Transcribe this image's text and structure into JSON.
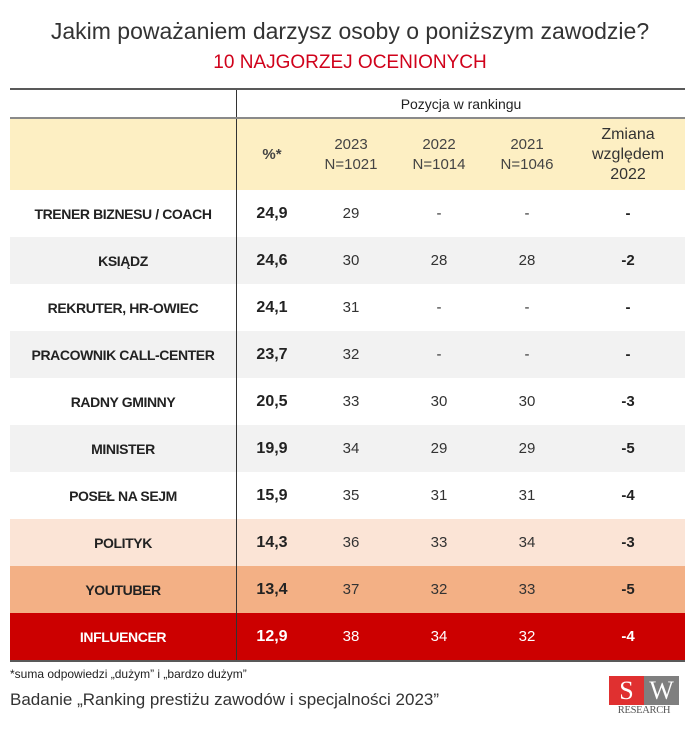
{
  "title": "Jakim poważaniem darzysz osoby o poniższym zawodzie?",
  "subtitle": "10 NAJGORZEJ OCENIONYCH",
  "header": {
    "group": "Pozycja w rankingu",
    "pct": "%*",
    "y2023": "2023",
    "n2023": "N=1021",
    "y2022": "2022",
    "n2022": "N=1014",
    "y2021": "2021",
    "n2021": "N=1046",
    "change1": "Zmiana",
    "change2": "względem",
    "change3": "2022"
  },
  "rows": [
    {
      "label": "TRENER BIZNESU / COACH",
      "pct": "24,9",
      "r2023": "29",
      "r2022": "-",
      "r2021": "-",
      "change": "-"
    },
    {
      "label": "KSIĄDZ",
      "pct": "24,6",
      "r2023": "30",
      "r2022": "28",
      "r2021": "28",
      "change": "-2"
    },
    {
      "label": "REKRUTER, HR-OWIEC",
      "pct": "24,1",
      "r2023": "31",
      "r2022": "-",
      "r2021": "-",
      "change": "-"
    },
    {
      "label": "PRACOWNIK CALL-CENTER",
      "pct": "23,7",
      "r2023": "32",
      "r2022": "-",
      "r2021": "-",
      "change": "-"
    },
    {
      "label": "RADNY GMINNY",
      "pct": "20,5",
      "r2023": "33",
      "r2022": "30",
      "r2021": "30",
      "change": "-3"
    },
    {
      "label": "MINISTER",
      "pct": "19,9",
      "r2023": "34",
      "r2022": "29",
      "r2021": "29",
      "change": "-5"
    },
    {
      "label": "POSEŁ NA SEJM",
      "pct": "15,9",
      "r2023": "35",
      "r2022": "31",
      "r2021": "31",
      "change": "-4"
    },
    {
      "label": "POLITYK",
      "pct": "14,3",
      "r2023": "36",
      "r2022": "33",
      "r2021": "34",
      "change": "-3"
    },
    {
      "label": "YOUTUBER",
      "pct": "13,4",
      "r2023": "37",
      "r2022": "32",
      "r2021": "33",
      "change": "-5"
    },
    {
      "label": "INFLUENCER",
      "pct": "12,9",
      "r2023": "38",
      "r2022": "34",
      "r2021": "32",
      "change": "-4"
    }
  ],
  "footnote": "*suma odpowiedzi „dużym” i „bardzo dużym”",
  "source": "Badanie „Ranking prestiżu zawodów i specjalności 2023”",
  "logo": {
    "s": "S",
    "w": "W",
    "text": "RESEARCH"
  },
  "colors": {
    "header": "#fdefc3",
    "polityk": "#fbe4d6",
    "youtuber": "#f3b085",
    "influencer": "#cc0000"
  }
}
